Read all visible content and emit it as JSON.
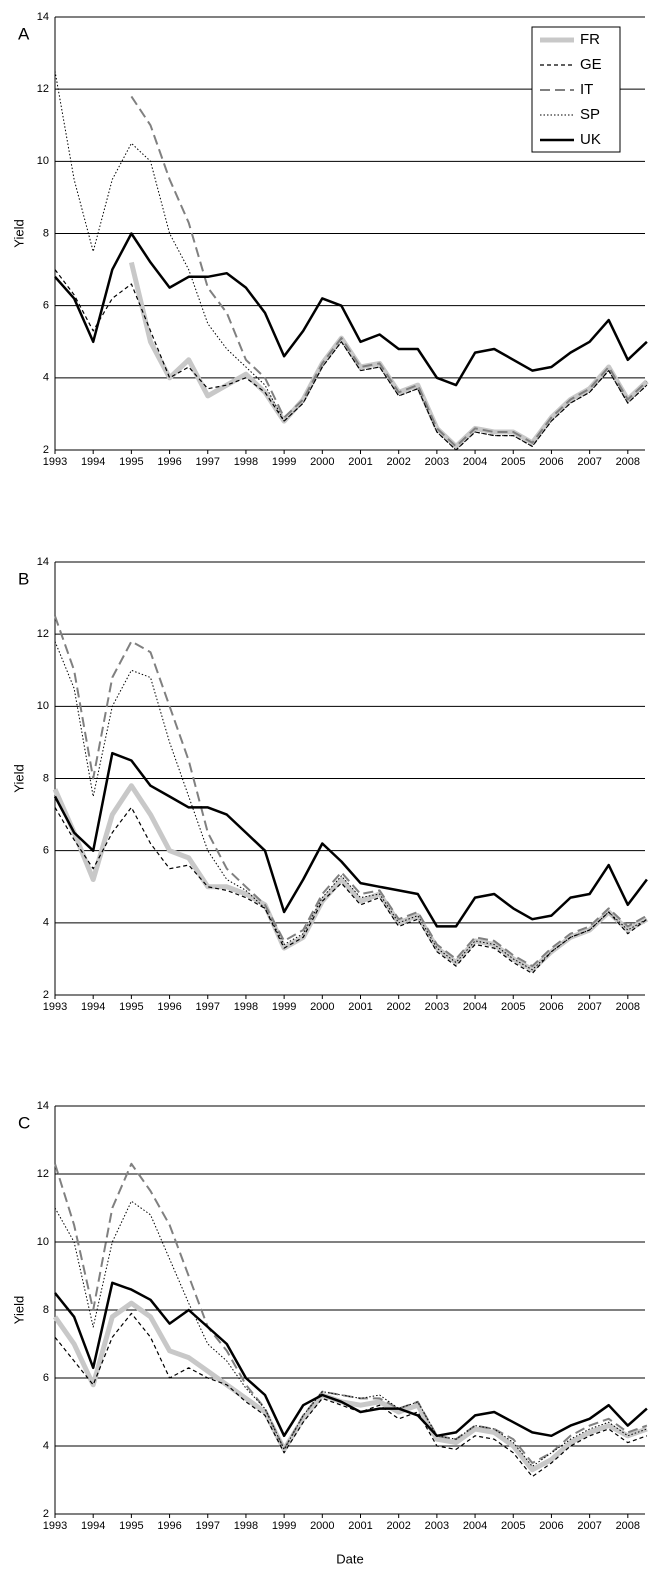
{
  "chart_data": [
    {
      "type": "line",
      "title": "A",
      "ylabel": "Yield",
      "legend": "upper right",
      "grid": true,
      "x": [
        1993,
        1993.5,
        1994,
        1994.5,
        1995,
        1995.5,
        1996,
        1996.5,
        1997,
        1997.5,
        1998,
        1998.5,
        1999,
        1999.5,
        2000,
        2000.5,
        2001,
        2001.5,
        2002,
        2002.5,
        2003,
        2003.5,
        2004,
        2004.5,
        2005,
        2005.5,
        2006,
        2006.5,
        2007,
        2007.5,
        2008,
        2008.5
      ],
      "xlim": [
        1993,
        2008.45
      ],
      "xticks": [
        1993,
        1994,
        1995,
        1996,
        1997,
        1998,
        1999,
        2000,
        2001,
        2002,
        2003,
        2004,
        2005,
        2006,
        2007,
        2008
      ],
      "ylim": [
        2,
        14
      ],
      "yticks": [
        2,
        4,
        6,
        8,
        10,
        12,
        14
      ],
      "series": [
        {
          "name": "FR",
          "color": "#c8c8c8",
          "linestyle": "wide",
          "values": [
            null,
            null,
            null,
            null,
            7.2,
            5.0,
            4.0,
            4.5,
            3.5,
            3.8,
            4.1,
            3.6,
            2.8,
            3.4,
            4.4,
            5.1,
            4.3,
            4.4,
            3.6,
            3.8,
            2.6,
            2.1,
            2.6,
            2.5,
            2.5,
            2.2,
            2.9,
            3.4,
            3.7,
            4.3,
            3.4,
            3.9
          ]
        },
        {
          "name": "GE",
          "color": "#000000",
          "linestyle": "dashed",
          "values": [
            7.0,
            6.3,
            5.3,
            6.2,
            6.6,
            5.3,
            4.0,
            4.3,
            3.7,
            3.8,
            4.0,
            3.6,
            2.8,
            3.3,
            4.3,
            5.0,
            4.2,
            4.3,
            3.5,
            3.7,
            2.5,
            2.0,
            2.5,
            2.4,
            2.4,
            2.1,
            2.8,
            3.3,
            3.6,
            4.2,
            3.3,
            3.8
          ]
        },
        {
          "name": "IT",
          "color": "#808080",
          "linestyle": "long-dashed",
          "values": [
            null,
            null,
            null,
            null,
            11.8,
            11.0,
            9.5,
            8.3,
            6.5,
            5.8,
            4.5,
            4.0,
            2.9,
            3.4,
            4.4,
            5.1,
            4.3,
            4.4,
            3.6,
            3.8,
            2.6,
            2.1,
            2.6,
            2.5,
            2.5,
            2.2,
            2.9,
            3.4,
            3.7,
            4.3,
            3.4,
            3.9
          ]
        },
        {
          "name": "SP",
          "color": "#000000",
          "linestyle": "dotted",
          "values": [
            12.5,
            9.5,
            7.5,
            9.5,
            10.5,
            10.0,
            8.0,
            7.0,
            5.5,
            4.8,
            4.3,
            3.8,
            2.8,
            3.3,
            4.3,
            5.0,
            4.2,
            4.3,
            3.5,
            3.7,
            2.5,
            2.0,
            2.5,
            2.4,
            2.4,
            2.1,
            2.8,
            3.3,
            3.6,
            4.2,
            3.3,
            3.8
          ]
        },
        {
          "name": "UK",
          "color": "#000000",
          "linestyle": "solid",
          "values": [
            6.8,
            6.2,
            5.0,
            7.0,
            8.0,
            7.2,
            6.5,
            6.8,
            6.8,
            6.9,
            6.5,
            5.8,
            4.6,
            5.3,
            6.2,
            6.0,
            5.0,
            5.2,
            4.8,
            4.8,
            4.0,
            3.8,
            4.7,
            4.8,
            4.5,
            4.2,
            4.3,
            4.7,
            5.0,
            5.6,
            4.5,
            5.0
          ]
        }
      ]
    },
    {
      "type": "line",
      "title": "B",
      "ylabel": "Yield",
      "grid": true,
      "x": [
        1993,
        1993.5,
        1994,
        1994.5,
        1995,
        1995.5,
        1996,
        1996.5,
        1997,
        1997.5,
        1998,
        1998.5,
        1999,
        1999.5,
        2000,
        2000.5,
        2001,
        2001.5,
        2002,
        2002.5,
        2003,
        2003.5,
        2004,
        2004.5,
        2005,
        2005.5,
        2006,
        2006.5,
        2007,
        2007.5,
        2008,
        2008.5
      ],
      "xlim": [
        1993,
        2008.45
      ],
      "xticks": [
        1993,
        1994,
        1995,
        1996,
        1997,
        1998,
        1999,
        2000,
        2001,
        2002,
        2003,
        2004,
        2005,
        2006,
        2007,
        2008
      ],
      "ylim": [
        2,
        14
      ],
      "yticks": [
        2,
        4,
        6,
        8,
        10,
        12,
        14
      ],
      "series": [
        {
          "color": "#c8c8c8",
          "linestyle": "wide",
          "values": [
            7.7,
            6.5,
            5.2,
            7.0,
            7.8,
            7.0,
            6.0,
            5.8,
            5.0,
            5.0,
            4.8,
            4.5,
            3.3,
            3.6,
            4.6,
            5.2,
            4.6,
            4.8,
            4.0,
            4.2,
            3.3,
            2.9,
            3.5,
            3.4,
            3.0,
            2.7,
            3.2,
            3.6,
            3.8,
            4.3,
            3.8,
            4.1
          ]
        },
        {
          "color": "#000000",
          "linestyle": "dashed",
          "values": [
            7.2,
            6.3,
            5.5,
            6.5,
            7.2,
            6.2,
            5.5,
            5.6,
            5.0,
            4.9,
            4.7,
            4.4,
            3.3,
            3.6,
            4.6,
            5.1,
            4.5,
            4.7,
            3.9,
            4.1,
            3.2,
            2.8,
            3.4,
            3.3,
            2.9,
            2.6,
            3.2,
            3.6,
            3.8,
            4.3,
            3.7,
            4.1
          ]
        },
        {
          "color": "#808080",
          "linestyle": "long-dashed",
          "values": [
            12.5,
            11.0,
            8.0,
            10.8,
            11.8,
            11.5,
            10.0,
            8.5,
            6.5,
            5.5,
            5.0,
            4.5,
            3.5,
            3.8,
            4.8,
            5.4,
            4.8,
            4.9,
            4.1,
            4.3,
            3.4,
            3.0,
            3.6,
            3.5,
            3.1,
            2.8,
            3.3,
            3.7,
            3.9,
            4.4,
            3.9,
            4.2
          ]
        },
        {
          "color": "#000000",
          "linestyle": "dotted",
          "values": [
            11.8,
            10.5,
            7.5,
            10.0,
            11.0,
            10.8,
            9.0,
            7.5,
            6.0,
            5.2,
            4.9,
            4.4,
            3.4,
            3.7,
            4.7,
            5.3,
            4.7,
            4.8,
            4.0,
            4.2,
            3.3,
            2.9,
            3.5,
            3.4,
            3.0,
            2.7,
            3.2,
            3.6,
            3.8,
            4.3,
            3.8,
            4.1
          ]
        },
        {
          "color": "#000000",
          "linestyle": "solid",
          "values": [
            7.5,
            6.5,
            6.0,
            8.7,
            8.5,
            7.8,
            7.5,
            7.2,
            7.2,
            7.0,
            6.5,
            6.0,
            4.3,
            5.2,
            6.2,
            5.7,
            5.1,
            5.0,
            4.9,
            4.8,
            3.9,
            3.9,
            4.7,
            4.8,
            4.4,
            4.1,
            4.2,
            4.7,
            4.8,
            5.6,
            4.5,
            5.2
          ]
        }
      ]
    },
    {
      "type": "line",
      "title": "C",
      "ylabel": "Yield",
      "xlabel": "Date",
      "grid": true,
      "x": [
        1993,
        1993.5,
        1994,
        1994.5,
        1995,
        1995.5,
        1996,
        1996.5,
        1997,
        1997.5,
        1998,
        1998.5,
        1999,
        1999.5,
        2000,
        2000.5,
        2001,
        2001.5,
        2002,
        2002.5,
        2003,
        2003.5,
        2004,
        2004.5,
        2005,
        2005.5,
        2006,
        2006.5,
        2007,
        2007.5,
        2008,
        2008.5
      ],
      "xlim": [
        1993,
        2008.45
      ],
      "xticks": [
        1993,
        1994,
        1995,
        1996,
        1997,
        1998,
        1999,
        2000,
        2001,
        2002,
        2003,
        2004,
        2005,
        2006,
        2007,
        2008
      ],
      "ylim": [
        2,
        14
      ],
      "yticks": [
        2,
        4,
        6,
        8,
        10,
        12,
        14
      ],
      "series": [
        {
          "color": "#c8c8c8",
          "linestyle": "wide",
          "values": [
            7.8,
            7.0,
            5.8,
            7.8,
            8.2,
            7.8,
            6.8,
            6.6,
            6.2,
            5.8,
            5.4,
            5.0,
            3.9,
            4.8,
            5.5,
            5.3,
            5.2,
            5.3,
            5.0,
            5.2,
            4.2,
            4.1,
            4.5,
            4.4,
            4.0,
            3.3,
            3.6,
            4.1,
            4.4,
            4.6,
            4.3,
            4.5
          ]
        },
        {
          "color": "#000000",
          "linestyle": "dashed",
          "values": [
            7.2,
            6.5,
            5.8,
            7.2,
            7.9,
            7.2,
            6.0,
            6.3,
            6.0,
            5.8,
            5.3,
            4.9,
            3.8,
            4.7,
            5.4,
            5.2,
            5.0,
            5.2,
            4.8,
            5.0,
            4.0,
            3.9,
            4.3,
            4.2,
            3.8,
            3.1,
            3.5,
            4.0,
            4.3,
            4.5,
            4.1,
            4.3
          ]
        },
        {
          "color": "#808080",
          "linestyle": "long-dashed",
          "values": [
            12.3,
            10.5,
            8.0,
            11.0,
            12.3,
            11.5,
            10.5,
            9.0,
            7.5,
            6.8,
            5.8,
            5.1,
            3.9,
            4.9,
            5.6,
            5.5,
            5.4,
            5.4,
            5.1,
            5.3,
            4.3,
            4.2,
            4.6,
            4.5,
            4.2,
            3.5,
            3.8,
            4.3,
            4.6,
            4.8,
            4.4,
            4.6
          ]
        },
        {
          "color": "#000000",
          "linestyle": "dotted",
          "values": [
            11.0,
            10.0,
            7.5,
            10.0,
            11.2,
            10.8,
            9.5,
            8.2,
            7.0,
            6.5,
            5.7,
            5.1,
            3.9,
            4.9,
            5.6,
            5.5,
            5.4,
            5.5,
            5.1,
            5.3,
            4.3,
            4.2,
            4.6,
            4.5,
            4.1,
            3.4,
            3.8,
            4.2,
            4.5,
            4.7,
            4.3,
            4.5
          ]
        },
        {
          "color": "#000000",
          "linestyle": "solid",
          "values": [
            8.5,
            7.8,
            6.3,
            8.8,
            8.6,
            8.3,
            7.6,
            8.0,
            7.5,
            7.0,
            6.0,
            5.5,
            4.3,
            5.2,
            5.5,
            5.3,
            5.0,
            5.1,
            5.1,
            4.9,
            4.3,
            4.4,
            4.9,
            5.0,
            4.7,
            4.4,
            4.3,
            4.6,
            4.8,
            5.2,
            4.6,
            5.1
          ]
        }
      ]
    }
  ]
}
